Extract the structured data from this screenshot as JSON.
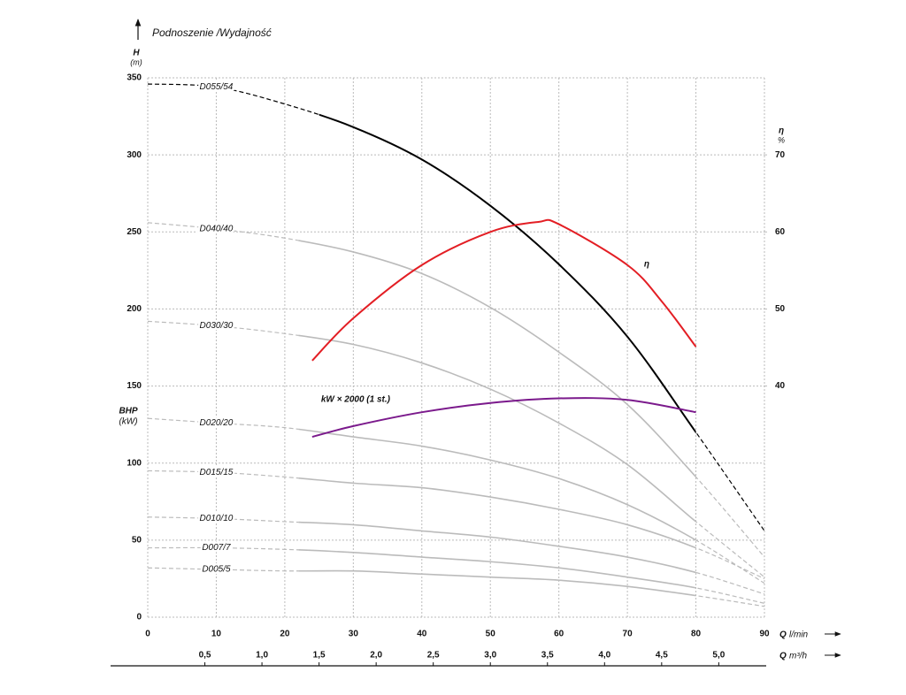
{
  "chart_data": {
    "type": "line",
    "title": "Podnoszenie /Wydajność",
    "y_label": "H",
    "y_unit": "(m)",
    "y3_label": "BHP",
    "y3_unit": "(kW)",
    "y2_label": "η",
    "y2_unit": "%",
    "x_label": "Q",
    "x_unit": "l/min",
    "x2_label": "Q",
    "x2_unit": "m³/h",
    "xlim": [
      0,
      90
    ],
    "xticks": [
      0,
      10,
      20,
      30,
      40,
      50,
      60,
      70,
      80,
      90
    ],
    "x2lim": [
      0,
      5.4
    ],
    "x2ticks": [
      {
        "value": 0.5,
        "label": "0,5"
      },
      {
        "value": 1.0,
        "label": "1,0"
      },
      {
        "value": 1.5,
        "label": "1,5"
      },
      {
        "value": 2.0,
        "label": "2,0"
      },
      {
        "value": 2.5,
        "label": "2,5"
      },
      {
        "value": 3.0,
        "label": "3,0"
      },
      {
        "value": 3.5,
        "label": "3,5"
      },
      {
        "value": 4.0,
        "label": "4,0"
      },
      {
        "value": 4.5,
        "label": "4,5"
      },
      {
        "value": 5.0,
        "label": "5,0"
      }
    ],
    "ylim": [
      0,
      350
    ],
    "yticks": [
      0,
      50,
      100,
      150,
      200,
      250,
      300,
      350
    ],
    "y2lim": [
      10,
      80
    ],
    "y2ticks": [
      40,
      50,
      60,
      70
    ],
    "grid": true,
    "series": [
      {
        "name": "D055/54",
        "color": "#000000",
        "solid_x": [
          25,
          80
        ],
        "x": [
          0,
          10,
          20,
          30,
          40,
          50,
          60,
          70,
          80,
          90
        ],
        "values": [
          346,
          344,
          333,
          318,
          297,
          267,
          229,
          182,
          120,
          56
        ]
      },
      {
        "name": "D040/40",
        "color": "#bbbbbb",
        "solid_x": [
          22,
          80
        ],
        "x": [
          0,
          10,
          20,
          30,
          40,
          50,
          60,
          70,
          80,
          90
        ],
        "values": [
          256,
          252,
          246,
          237,
          223,
          201,
          172,
          138,
          91,
          39
        ]
      },
      {
        "name": "D030/30",
        "color": "#bbbbbb",
        "solid_x": [
          22,
          80
        ],
        "x": [
          0,
          10,
          20,
          30,
          40,
          50,
          60,
          70,
          80,
          90
        ],
        "values": [
          192,
          189,
          184,
          177,
          165,
          148,
          126,
          99,
          62,
          26
        ]
      },
      {
        "name": "D020/20",
        "color": "#bbbbbb",
        "solid_x": [
          22,
          80
        ],
        "x": [
          0,
          10,
          20,
          30,
          40,
          50,
          60,
          70,
          80,
          90
        ],
        "values": [
          129,
          126,
          123,
          117,
          111,
          102,
          90,
          73,
          50,
          22
        ]
      },
      {
        "name": "D015/15",
        "color": "#bbbbbb",
        "solid_x": [
          22,
          80
        ],
        "x": [
          0,
          10,
          20,
          30,
          40,
          50,
          60,
          70,
          80,
          90
        ],
        "values": [
          95,
          94,
          91,
          87,
          84,
          78,
          70,
          60,
          45,
          25
        ]
      },
      {
        "name": "D010/10",
        "color": "#bbbbbb",
        "solid_x": [
          22,
          80
        ],
        "x": [
          0,
          10,
          20,
          30,
          40,
          50,
          60,
          70,
          80,
          90
        ],
        "values": [
          65,
          64,
          62,
          60,
          56,
          52,
          46,
          39,
          29,
          15
        ]
      },
      {
        "name": "D007/7",
        "color": "#bbbbbb",
        "solid_x": [
          22,
          80
        ],
        "x": [
          0,
          10,
          20,
          30,
          40,
          50,
          60,
          70,
          80,
          90
        ],
        "values": [
          45,
          45,
          44,
          42,
          39,
          36,
          32,
          26,
          19,
          9
        ]
      },
      {
        "name": "D005/5",
        "color": "#bbbbbb",
        "solid_x": [
          22,
          80
        ],
        "x": [
          0,
          10,
          20,
          30,
          40,
          50,
          60,
          70,
          80,
          90
        ],
        "values": [
          32,
          31,
          30,
          30,
          28,
          26,
          24,
          20,
          14,
          7
        ]
      },
      {
        "name": "η",
        "color": "#e31e24",
        "axis": "y2",
        "x": [
          24,
          30,
          40,
          50,
          57,
          60,
          70,
          75,
          80
        ],
        "values": [
          43.3,
          48.8,
          55.7,
          60,
          61.3,
          61,
          55.7,
          51,
          45.1
        ]
      },
      {
        "name": "kW × 2000 (1 st.)",
        "color": "#7b1a8c",
        "x": [
          24,
          30,
          40,
          50,
          60,
          70,
          80
        ],
        "values": [
          117,
          124,
          133,
          139,
          142,
          141,
          133
        ]
      }
    ]
  }
}
